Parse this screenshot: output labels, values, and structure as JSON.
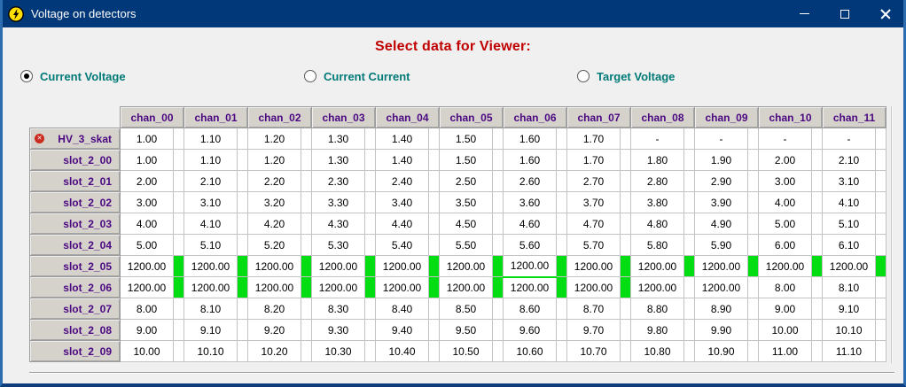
{
  "window": {
    "title": "Voltage on detectors"
  },
  "icons": {
    "app": "lightning-bolt",
    "minimize": "minimize-bar",
    "maximize": "maximize-square",
    "close": "close-x",
    "error": "✕"
  },
  "header": {
    "title": "Select data for Viewer:"
  },
  "radios": [
    {
      "label": "Current Voltage",
      "selected": true
    },
    {
      "label": "Current Current",
      "selected": false
    },
    {
      "label": "Target Voltage",
      "selected": false
    }
  ],
  "table": {
    "columns": [
      "chan_00",
      "chan_01",
      "chan_02",
      "chan_03",
      "chan_04",
      "chan_05",
      "chan_06",
      "chan_07",
      "chan_08",
      "chan_09",
      "chan_10",
      "chan_11"
    ],
    "rows": [
      {
        "name": "HV_3_skat",
        "error": true,
        "values": [
          "1.00",
          "1.10",
          "1.20",
          "1.30",
          "1.40",
          "1.50",
          "1.60",
          "1.70",
          "-",
          "-",
          "-",
          "-"
        ]
      },
      {
        "name": "slot_2_00",
        "values": [
          "1.00",
          "1.10",
          "1.20",
          "1.30",
          "1.40",
          "1.50",
          "1.60",
          "1.70",
          "1.80",
          "1.90",
          "2.00",
          "2.10"
        ]
      },
      {
        "name": "slot_2_01",
        "values": [
          "2.00",
          "2.10",
          "2.20",
          "2.30",
          "2.40",
          "2.50",
          "2.60",
          "2.70",
          "2.80",
          "2.90",
          "3.00",
          "3.10"
        ]
      },
      {
        "name": "slot_2_02",
        "values": [
          "3.00",
          "3.10",
          "3.20",
          "3.30",
          "3.40",
          "3.50",
          "3.60",
          "3.70",
          "3.80",
          "3.90",
          "4.00",
          "4.10"
        ]
      },
      {
        "name": "slot_2_03",
        "values": [
          "4.00",
          "4.10",
          "4.20",
          "4.30",
          "4.40",
          "4.50",
          "4.60",
          "4.70",
          "4.80",
          "4.90",
          "5.00",
          "5.10"
        ]
      },
      {
        "name": "slot_2_04",
        "values": [
          "5.00",
          "5.10",
          "5.20",
          "5.30",
          "5.40",
          "5.50",
          "5.60",
          "5.70",
          "5.80",
          "5.90",
          "6.00",
          "6.10"
        ]
      },
      {
        "name": "slot_2_05",
        "values": [
          "1200.00",
          "1200.00",
          "1200.00",
          "1200.00",
          "1200.00",
          "1200.00",
          "1200.00",
          "1200.00",
          "1200.00",
          "1200.00",
          "1200.00",
          "1200.00"
        ],
        "green": [
          true,
          true,
          true,
          true,
          true,
          true,
          true,
          true,
          true,
          true,
          true,
          true
        ]
      },
      {
        "name": "slot_2_06",
        "values": [
          "1200.00",
          "1200.00",
          "1200.00",
          "1200.00",
          "1200.00",
          "1200.00",
          "1200.00",
          "1200.00",
          "1200.00",
          "1200.00",
          "8.00",
          "8.10"
        ],
        "green": [
          true,
          true,
          true,
          true,
          true,
          true,
          true,
          true,
          false,
          false,
          false,
          false
        ],
        "selected_col": 6
      },
      {
        "name": "slot_2_07",
        "values": [
          "8.00",
          "8.10",
          "8.20",
          "8.30",
          "8.40",
          "8.50",
          "8.60",
          "8.70",
          "8.80",
          "8.90",
          "9.00",
          "9.10"
        ]
      },
      {
        "name": "slot_2_08",
        "values": [
          "9.00",
          "9.10",
          "9.20",
          "9.30",
          "9.40",
          "9.50",
          "9.60",
          "9.70",
          "9.80",
          "9.90",
          "10.00",
          "10.10"
        ]
      },
      {
        "name": "slot_2_09",
        "values": [
          "10.00",
          "10.10",
          "10.20",
          "10.30",
          "10.40",
          "10.50",
          "10.60",
          "10.70",
          "10.80",
          "10.90",
          "11.00",
          "11.10"
        ]
      }
    ]
  },
  "colors": {
    "titlebar": "#00387a",
    "heading_text": "#c00000",
    "radio_text": "#007a78",
    "header_text": "#4b0882",
    "indicator_green": "#00dd12",
    "error_red": "#cc2b20"
  }
}
